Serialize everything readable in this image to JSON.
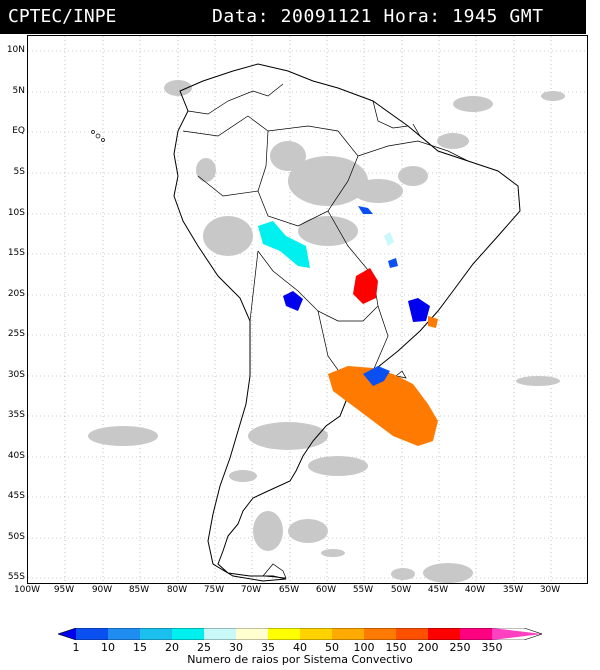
{
  "header": {
    "org": "CPTEC/INPE",
    "stamp": "Data: 20091121 Hora: 1945 GMT"
  },
  "map": {
    "lat_labels": [
      "10N",
      "5N",
      "EQ",
      "5S",
      "10S",
      "15S",
      "20S",
      "25S",
      "30S",
      "35S",
      "40S",
      "45S",
      "50S",
      "55S"
    ],
    "lon_labels": [
      "100W",
      "95W",
      "90W",
      "85W",
      "80W",
      "75W",
      "70W",
      "65W",
      "60W",
      "55W",
      "50W",
      "45W",
      "40W",
      "35W",
      "30W"
    ]
  },
  "legend": {
    "caption": "Numero de raios por Sistema Convectivo",
    "values": [
      "1",
      "10",
      "15",
      "20",
      "25",
      "30",
      "35",
      "40",
      "50",
      "100",
      "150",
      "200",
      "250",
      "350"
    ],
    "colors": [
      "#0000ee",
      "#0a50f0",
      "#1f8cf2",
      "#1cc0ee",
      "#00f0f0",
      "#c8f8f8",
      "#ffffd0",
      "#ffff00",
      "#ffd200",
      "#ffaa00",
      "#ff7a00",
      "#ff5000",
      "#ff0000",
      "#ff0080",
      "#ff40c0"
    ]
  }
}
